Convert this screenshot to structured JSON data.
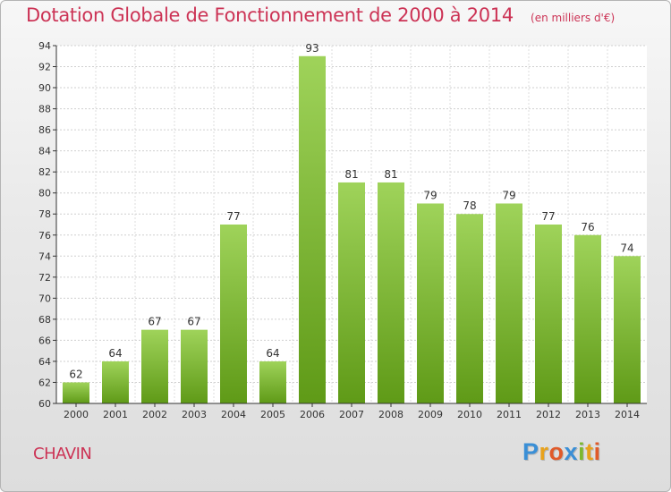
{
  "chart_data": {
    "type": "bar",
    "title": "Dotation Globale de Fonctionnement de 2000 à 2014",
    "subtitle": "(en milliers d'€)",
    "categories": [
      "2000",
      "2001",
      "2002",
      "2003",
      "2004",
      "2005",
      "2006",
      "2007",
      "2008",
      "2009",
      "2010",
      "2011",
      "2012",
      "2013",
      "2014"
    ],
    "values": [
      62,
      64,
      67,
      67,
      77,
      64,
      93,
      81,
      81,
      79,
      78,
      79,
      77,
      76,
      74
    ],
    "ylim": [
      60,
      94
    ],
    "yticks": [
      60,
      62,
      64,
      66,
      68,
      70,
      72,
      74,
      76,
      78,
      80,
      82,
      84,
      86,
      88,
      90,
      92,
      94
    ],
    "grid": true,
    "bar_color": "#7ec234",
    "xlabel": "",
    "ylabel": ""
  },
  "commune": "CHAVIN",
  "brand": {
    "letters": [
      "P",
      "r",
      "o",
      "x",
      "i",
      "t",
      "i"
    ],
    "colors": [
      "#3a8fd6",
      "#e8a21c",
      "#e05a2a",
      "#3a8fd6",
      "#7cb82f",
      "#e8a21c",
      "#e05a2a"
    ]
  },
  "colors": {
    "accent": "#cc3355",
    "axis": "#333333"
  }
}
